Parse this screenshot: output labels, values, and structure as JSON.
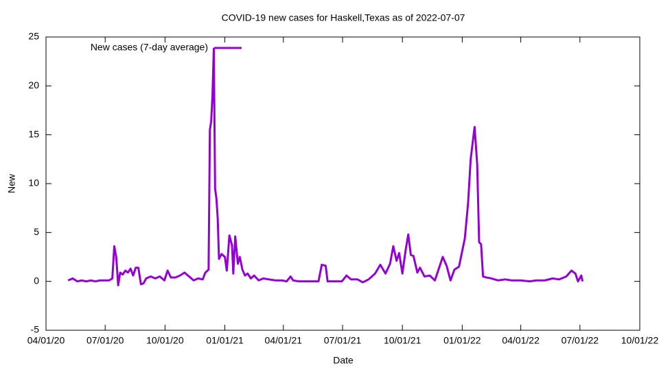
{
  "chart_data": {
    "type": "line",
    "title": "COVID-19 new cases for Haskell,Texas as of 2022-07-07",
    "x_label": "Date",
    "y_label": "New",
    "x": [
      "2020-05-05",
      "2020-05-12",
      "2020-05-19",
      "2020-05-26",
      "2020-06-02",
      "2020-06-09",
      "2020-06-16",
      "2020-06-23",
      "2020-06-30",
      "2020-07-07",
      "2020-07-12",
      "2020-07-15",
      "2020-07-18",
      "2020-07-21",
      "2020-07-24",
      "2020-07-28",
      "2020-08-01",
      "2020-08-05",
      "2020-08-09",
      "2020-08-13",
      "2020-08-17",
      "2020-08-21",
      "2020-08-25",
      "2020-08-29",
      "2020-09-02",
      "2020-09-09",
      "2020-09-16",
      "2020-09-23",
      "2020-09-30",
      "2020-10-05",
      "2020-10-10",
      "2020-10-17",
      "2020-10-24",
      "2020-10-31",
      "2020-11-07",
      "2020-11-14",
      "2020-11-21",
      "2020-11-28",
      "2020-12-02",
      "2020-12-07",
      "2020-12-09",
      "2020-12-11",
      "2020-12-13",
      "2020-12-15",
      "2020-12-17",
      "2020-12-19",
      "2020-12-21",
      "2020-12-23",
      "2020-12-27",
      "2021-01-01",
      "2021-01-04",
      "2021-01-08",
      "2021-01-12",
      "2021-01-14",
      "2021-01-17",
      "2021-01-21",
      "2021-01-24",
      "2021-01-28",
      "2021-02-01",
      "2021-02-05",
      "2021-02-10",
      "2021-02-15",
      "2021-02-22",
      "2021-03-01",
      "2021-03-10",
      "2021-03-20",
      "2021-03-30",
      "2021-04-06",
      "2021-04-12",
      "2021-04-16",
      "2021-04-25",
      "2021-05-05",
      "2021-05-15",
      "2021-05-25",
      "2021-05-30",
      "2021-06-05",
      "2021-06-08",
      "2021-06-20",
      "2021-06-30",
      "2021-07-07",
      "2021-07-14",
      "2021-07-24",
      "2021-08-01",
      "2021-08-10",
      "2021-08-20",
      "2021-08-28",
      "2021-09-05",
      "2021-09-12",
      "2021-09-17",
      "2021-09-22",
      "2021-09-26",
      "2021-10-01",
      "2021-10-06",
      "2021-10-10",
      "2021-10-14",
      "2021-10-18",
      "2021-10-24",
      "2021-10-28",
      "2021-11-04",
      "2021-11-12",
      "2021-11-20",
      "2021-11-26",
      "2021-12-02",
      "2021-12-08",
      "2021-12-14",
      "2021-12-20",
      "2021-12-27",
      "2022-01-05",
      "2022-01-10",
      "2022-01-14",
      "2022-01-20",
      "2022-01-24",
      "2022-01-27",
      "2022-01-30",
      "2022-02-02",
      "2022-02-07",
      "2022-02-15",
      "2022-02-25",
      "2022-03-08",
      "2022-03-18",
      "2022-04-01",
      "2022-04-15",
      "2022-04-25",
      "2022-05-08",
      "2022-05-20",
      "2022-05-30",
      "2022-06-10",
      "2022-06-18",
      "2022-06-24",
      "2022-06-28",
      "2022-07-03",
      "2022-07-05"
    ],
    "series": [
      {
        "name": "New cases (7-day average)",
        "color": "#9400d3",
        "values": [
          0.1,
          0.3,
          0,
          0.1,
          0,
          0.1,
          0,
          0.1,
          0.1,
          0.1,
          0.3,
          3.6,
          2.5,
          -0.4,
          0.9,
          0.7,
          1.1,
          0.9,
          1.3,
          0.6,
          1.4,
          1.4,
          -0.3,
          -0.2,
          0.3,
          0.5,
          0.3,
          0.5,
          0.1,
          1.1,
          0.4,
          0.4,
          0.6,
          0.9,
          0.5,
          0.1,
          0.3,
          0.2,
          0.9,
          1.2,
          15.5,
          16.4,
          19,
          23.8,
          9.5,
          8.5,
          6.5,
          2.3,
          2.8,
          2.5,
          1.1,
          4.7,
          3.7,
          0.8,
          4.6,
          1.8,
          2.5,
          1.2,
          0.6,
          0.8,
          0.3,
          0.6,
          0.1,
          0.3,
          0.2,
          0.1,
          0.1,
          0,
          0.5,
          0.1,
          0,
          0,
          0,
          0,
          1.7,
          1.6,
          0,
          0,
          0,
          0.6,
          0.2,
          0.2,
          -0.1,
          0.2,
          0.8,
          1.7,
          0.8,
          1.8,
          3.6,
          2.1,
          2.9,
          0.8,
          3.2,
          4.8,
          2.7,
          2.6,
          0.9,
          1.4,
          0.5,
          0.6,
          0.1,
          1.3,
          2.5,
          1.6,
          0.1,
          1.2,
          1.5,
          4.4,
          8,
          12.5,
          15.8,
          12,
          4,
          3.8,
          0.5,
          0.4,
          0.3,
          0.1,
          0.2,
          0.1,
          0.1,
          0,
          0.1,
          0.1,
          0.3,
          0.2,
          0.5,
          1.1,
          0.8,
          0,
          0.6,
          0
        ]
      }
    ],
    "xlim": [
      "2020-04-01",
      "2022-10-01"
    ],
    "xticks": [
      {
        "value": "2020-04-01",
        "label": "04/01/20"
      },
      {
        "value": "2020-07-01",
        "label": "07/01/20"
      },
      {
        "value": "2020-10-01",
        "label": "10/01/20"
      },
      {
        "value": "2021-01-01",
        "label": "01/01/21"
      },
      {
        "value": "2021-04-01",
        "label": "04/01/21"
      },
      {
        "value": "2021-07-01",
        "label": "07/01/21"
      },
      {
        "value": "2021-10-01",
        "label": "10/01/21"
      },
      {
        "value": "2022-01-01",
        "label": "01/01/22"
      },
      {
        "value": "2022-04-01",
        "label": "04/01/22"
      },
      {
        "value": "2022-07-01",
        "label": "07/01/22"
      },
      {
        "value": "2022-10-01",
        "label": "10/01/22"
      }
    ],
    "ylim": [
      -5,
      25
    ],
    "yticks": [
      -5,
      0,
      5,
      10,
      15,
      20,
      25
    ],
    "legend": "top-left"
  }
}
